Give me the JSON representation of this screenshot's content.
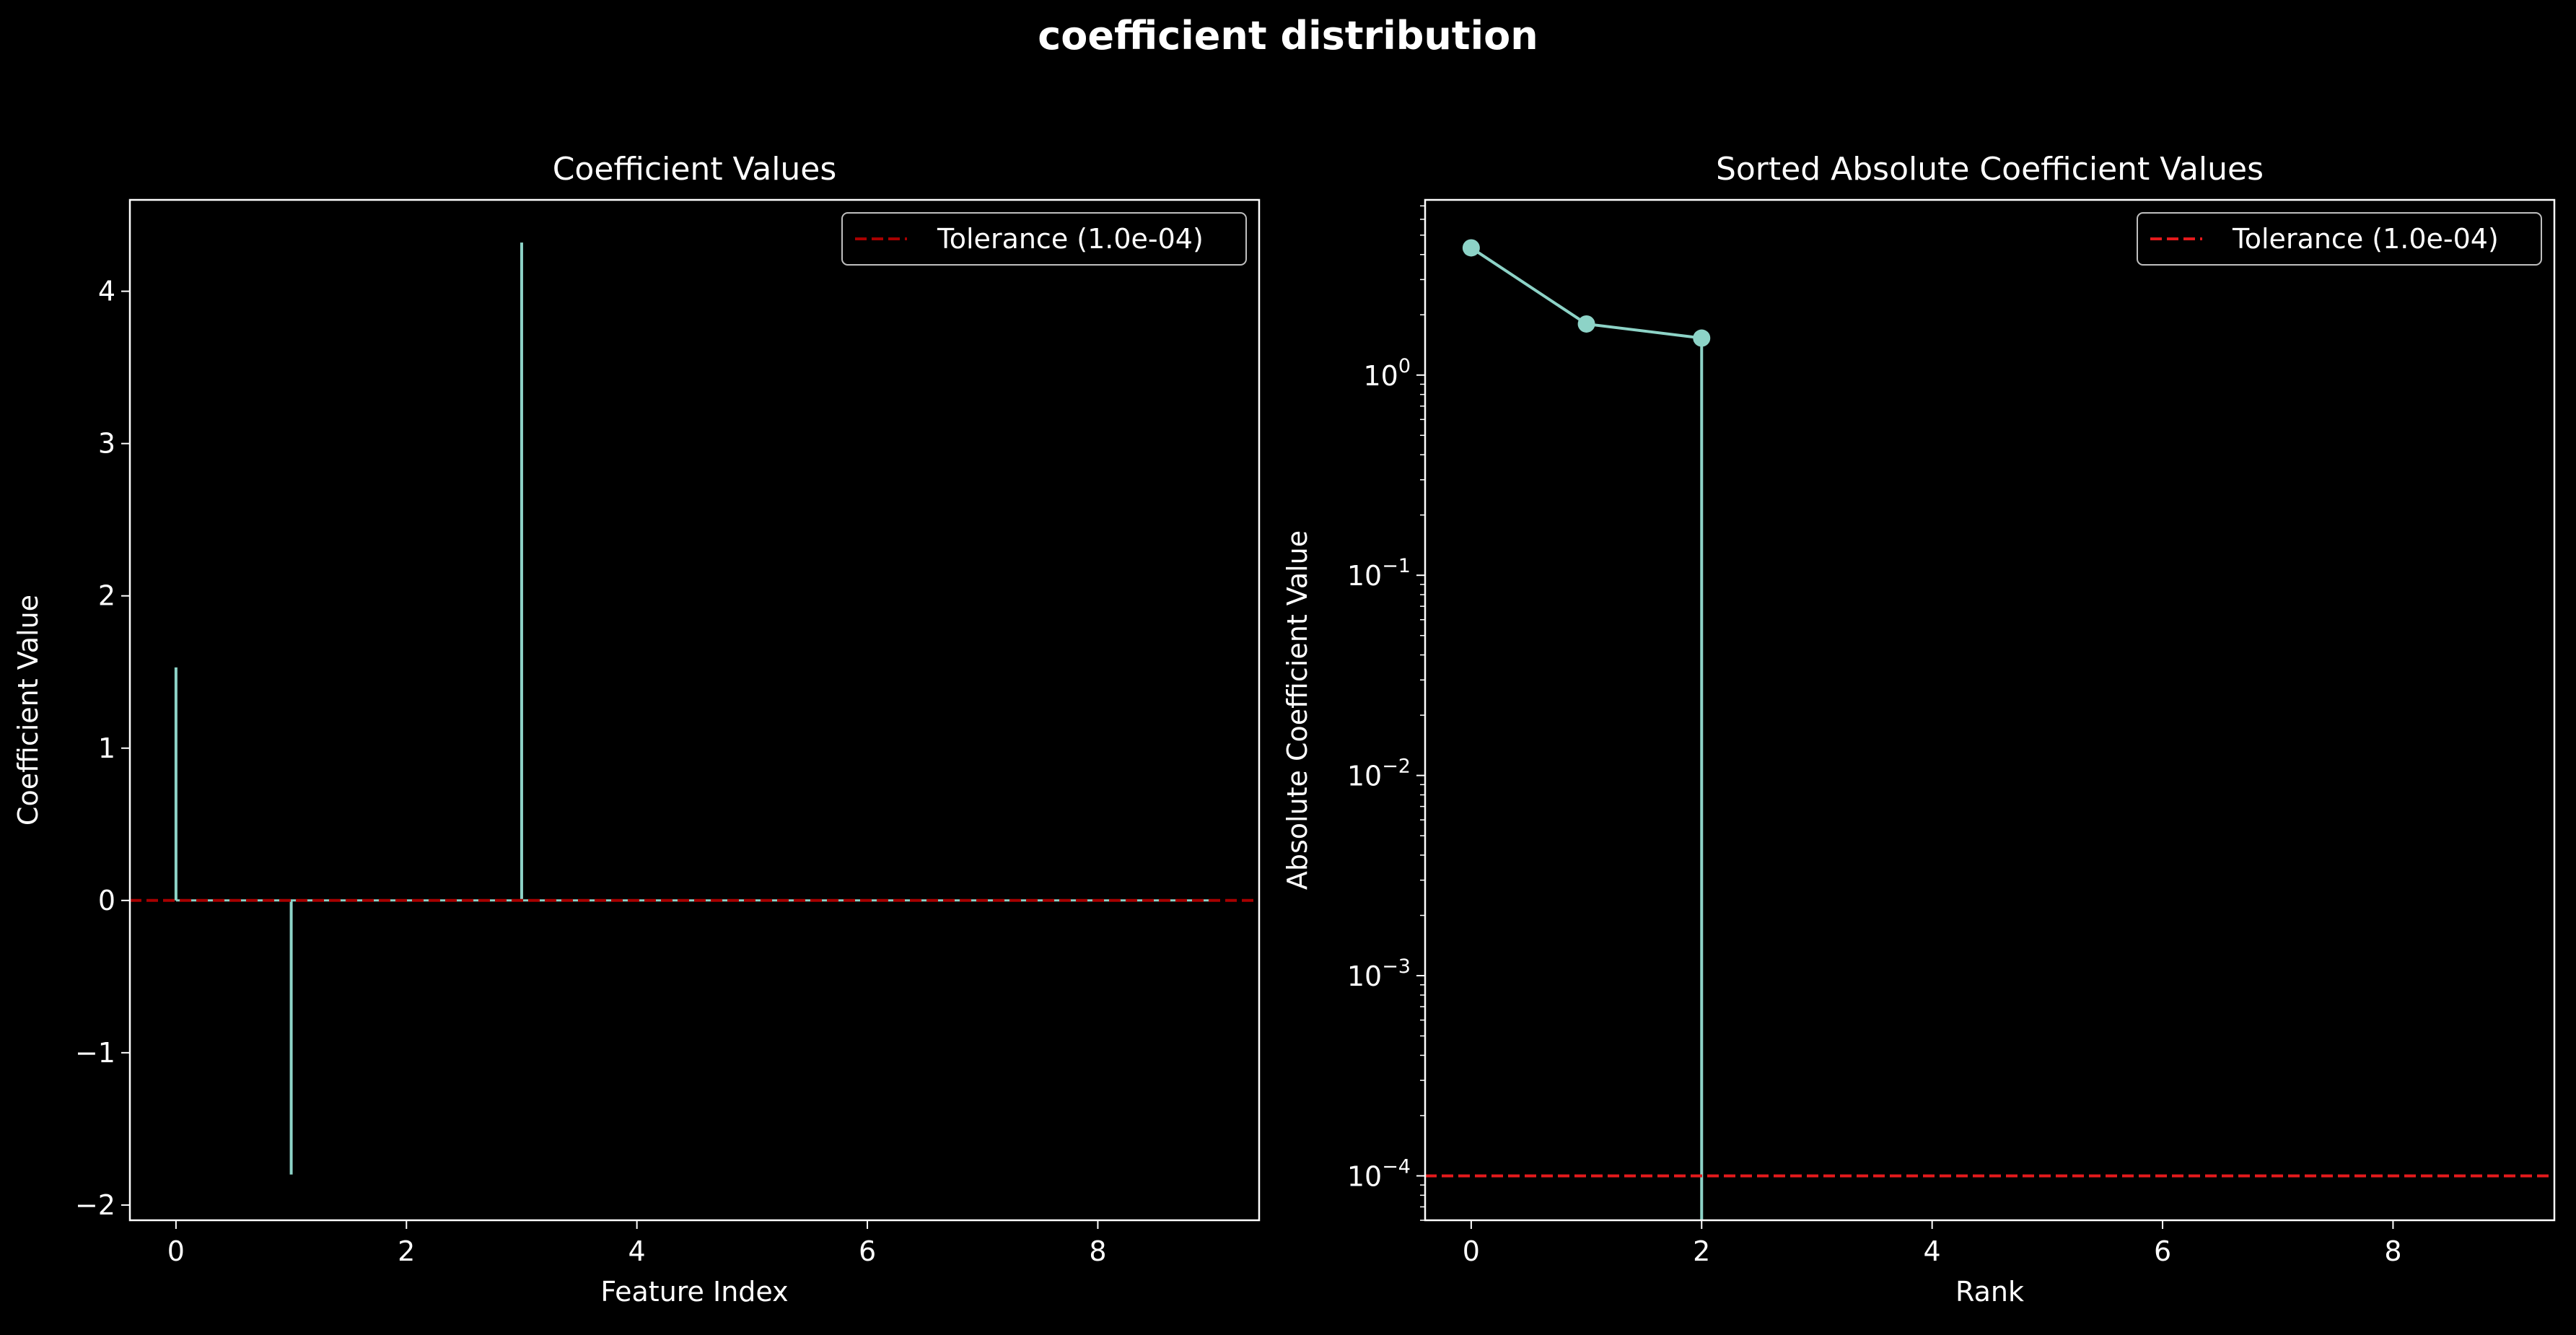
{
  "figure": {
    "title": "coefficient distribution"
  },
  "colors": {
    "background": "#000000",
    "foreground": "#ffffff",
    "series": "#8dd3c7",
    "tolerance": "#e41a1c",
    "tolerance_left": "#a80000",
    "legend_edge": "#bfbfbf"
  },
  "chart_data": [
    {
      "type": "bar",
      "title": "Coefficient Values",
      "xlabel": "Feature Index",
      "ylabel": "Coefficient Value",
      "xlim": [
        -0.4,
        9.4
      ],
      "ylim": [
        -2.1,
        4.6
      ],
      "xticks": [
        0,
        2,
        4,
        6,
        8
      ],
      "xtick_labels": [
        "0",
        "2",
        "4",
        "6",
        "8"
      ],
      "yticks": [
        -2,
        -1,
        0,
        1,
        2,
        3,
        4
      ],
      "ytick_labels": [
        "−2",
        "−1",
        "0",
        "1",
        "2",
        "3",
        "4"
      ],
      "x": [
        0,
        1,
        2,
        3,
        4,
        5,
        6,
        7,
        8,
        9
      ],
      "values": [
        1.53,
        -1.8,
        0,
        4.32,
        0,
        0,
        0,
        0,
        0,
        0
      ],
      "tolerance": 0.0001,
      "legend": {
        "label": "Tolerance (1.0e-04)",
        "placement": "top-right"
      },
      "grid": false
    },
    {
      "type": "line",
      "title": "Sorted Absolute Coefficient Values",
      "xlabel": "Rank",
      "ylabel": "Absolute Coefficient Value",
      "yscale": "log",
      "xlim": [
        -0.4,
        9.4
      ],
      "ylim": [
        6e-05,
        7.5
      ],
      "xticks": [
        0,
        2,
        4,
        6,
        8
      ],
      "xtick_labels": [
        "0",
        "2",
        "4",
        "6",
        "8"
      ],
      "yticks": [
        0.0001,
        0.001,
        0.01,
        0.1,
        1
      ],
      "ytick_labels": [
        {
          "base": "10",
          "exp": "−4"
        },
        {
          "base": "10",
          "exp": "−3"
        },
        {
          "base": "10",
          "exp": "−2"
        },
        {
          "base": "10",
          "exp": "−1"
        },
        {
          "base": "10",
          "exp": "0"
        }
      ],
      "x": [
        0,
        1,
        2,
        3,
        4,
        5,
        6,
        7,
        8,
        9
      ],
      "values": [
        4.32,
        1.8,
        1.53,
        0,
        0,
        0,
        0,
        0,
        0,
        0
      ],
      "tolerance": 0.0001,
      "legend": {
        "label": "Tolerance (1.0e-04)",
        "placement": "top-right"
      },
      "grid": false
    }
  ]
}
